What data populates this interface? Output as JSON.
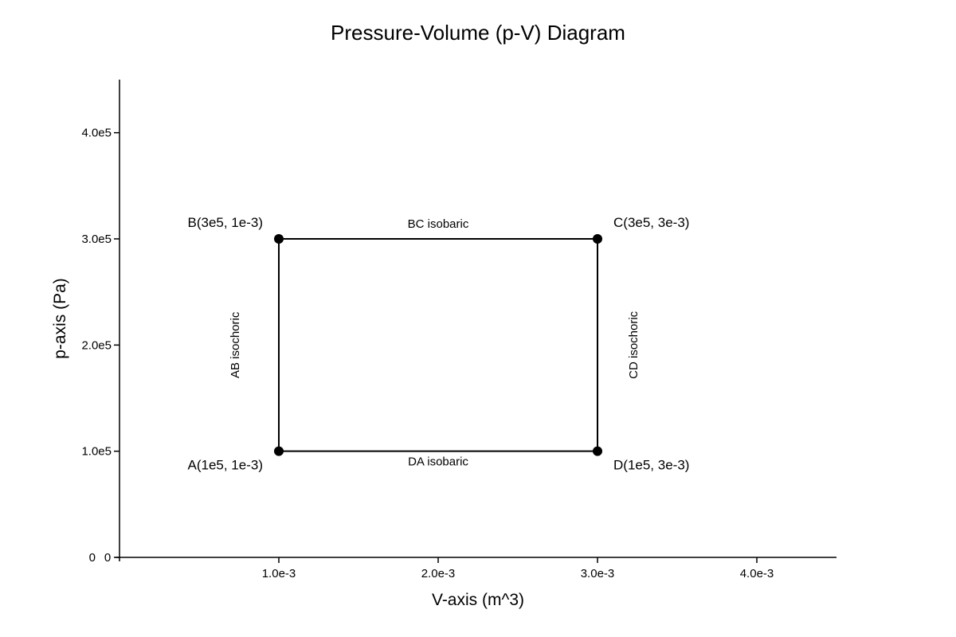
{
  "chart_data": {
    "type": "line",
    "title": "Pressure-Volume (p-V) Diagram",
    "xlabel": "V-axis (m^3)",
    "ylabel": "p-axis (Pa)",
    "xlim": [
      0,
      0.0045
    ],
    "ylim": [
      0,
      450000
    ],
    "grid": false,
    "x_ticks": [
      {
        "value": 0.001,
        "label": "1.0e-3"
      },
      {
        "value": 0.002,
        "label": "2.0e-3"
      },
      {
        "value": 0.003,
        "label": "3.0e-3"
      },
      {
        "value": 0.004,
        "label": "4.0e-3"
      }
    ],
    "x_origin_label": "0",
    "y_ticks": [
      {
        "value": 0,
        "label": "0"
      },
      {
        "value": 100000,
        "label": "1.0e5"
      },
      {
        "value": 200000,
        "label": "2.0e5"
      },
      {
        "value": 300000,
        "label": "3.0e5"
      },
      {
        "value": 400000,
        "label": "4.0e5"
      }
    ],
    "points": [
      {
        "name": "A",
        "x": 0.001,
        "y": 100000,
        "label": "A(1e5, 1e-3)",
        "label_pos": "bottom-left"
      },
      {
        "name": "B",
        "x": 0.001,
        "y": 300000,
        "label": "B(3e5, 1e-3)",
        "label_pos": "top-left"
      },
      {
        "name": "C",
        "x": 0.003,
        "y": 300000,
        "label": "C(3e5, 3e-3)",
        "label_pos": "top-right"
      },
      {
        "name": "D",
        "x": 0.003,
        "y": 100000,
        "label": "D(1e5, 3e-3)",
        "label_pos": "bottom-right"
      }
    ],
    "segments": [
      {
        "from": "A",
        "to": "B",
        "label": "AB isochoric",
        "label_side": "left",
        "rotated": true
      },
      {
        "from": "B",
        "to": "C",
        "label": "BC isobaric",
        "label_side": "top",
        "rotated": false
      },
      {
        "from": "C",
        "to": "D",
        "label": "CD isochoric",
        "label_side": "right",
        "rotated": true
      },
      {
        "from": "D",
        "to": "A",
        "label": "DA isobaric",
        "label_side": "bottom",
        "rotated": false
      }
    ]
  }
}
